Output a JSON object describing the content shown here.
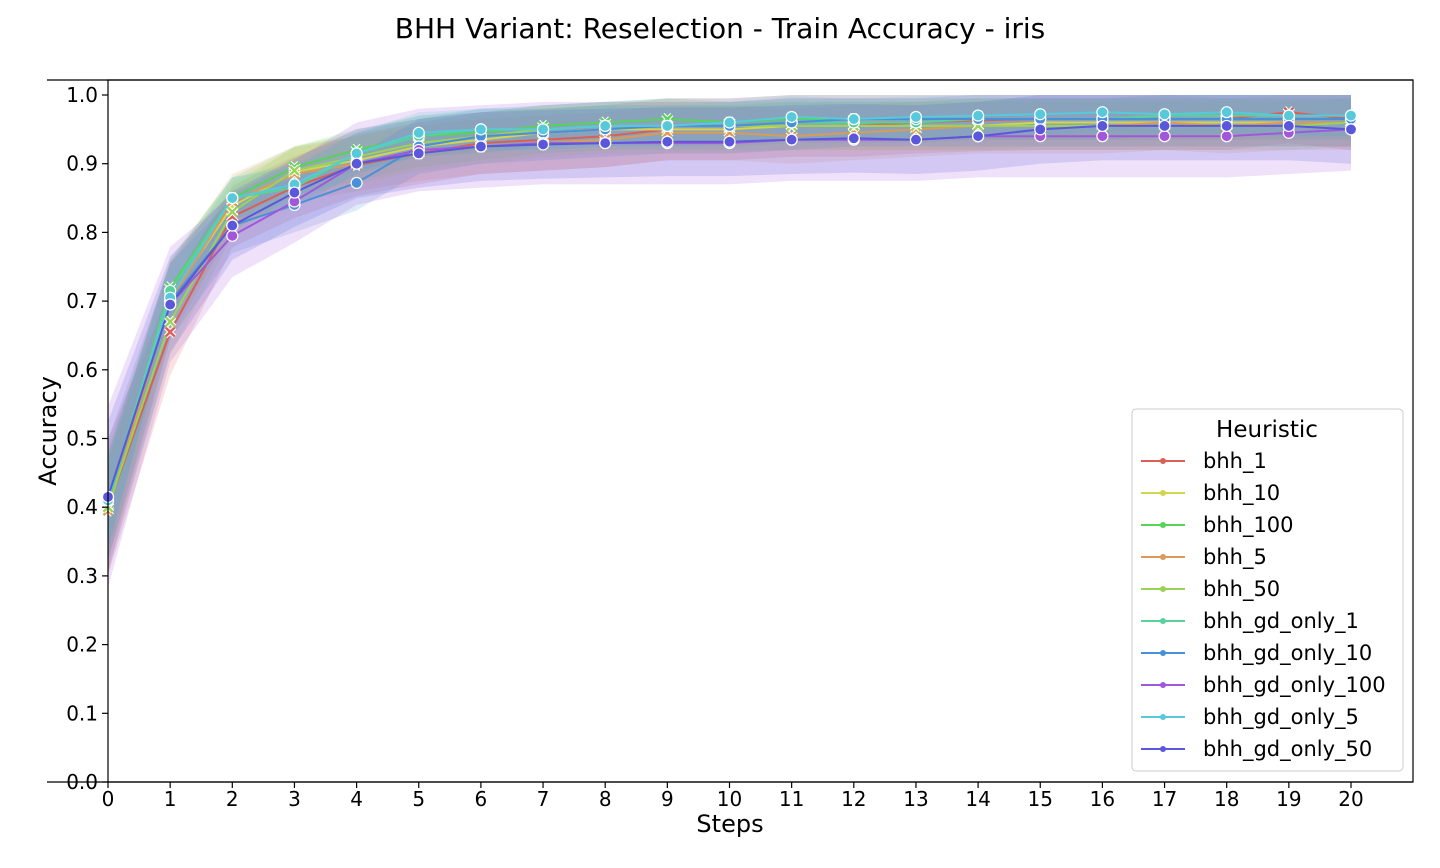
{
  "chart_data": {
    "type": "line",
    "title": "BHH Variant: Reselection - Train Accuracy - iris",
    "xlabel": "Steps",
    "ylabel": "Accuracy",
    "xlim": [
      0,
      21
    ],
    "ylim": [
      0.0,
      1.02
    ],
    "x": [
      0,
      1,
      2,
      3,
      4,
      5,
      6,
      7,
      8,
      9,
      10,
      11,
      12,
      13,
      14,
      15,
      16,
      17,
      18,
      19,
      20
    ],
    "x_ticks": [
      "0",
      "1",
      "2",
      "3",
      "4",
      "5",
      "6",
      "7",
      "8",
      "9",
      "10",
      "11",
      "12",
      "13",
      "14",
      "15",
      "16",
      "17",
      "18",
      "19",
      "20"
    ],
    "y_ticks": [
      "0.0",
      "0.1",
      "0.2",
      "0.3",
      "0.4",
      "0.5",
      "0.6",
      "0.7",
      "0.8",
      "0.9",
      "1.0"
    ],
    "grid": false,
    "legend": {
      "title": "Heuristic",
      "placement": "lower-right"
    },
    "series": [
      {
        "name": "bhh_1",
        "color": "#db5f57",
        "marker": "x",
        "values": [
          0.4,
          0.655,
          0.823,
          0.866,
          0.898,
          0.915,
          0.93,
          0.935,
          0.94,
          0.95,
          0.95,
          0.955,
          0.955,
          0.96,
          0.963,
          0.965,
          0.965,
          0.965,
          0.965,
          0.975,
          0.965
        ],
        "band": 0.045
      },
      {
        "name": "bhh_10",
        "color": "#d3d54f",
        "marker": "x",
        "values": [
          0.4,
          0.705,
          0.838,
          0.888,
          0.905,
          0.925,
          0.935,
          0.945,
          0.95,
          0.95,
          0.95,
          0.955,
          0.955,
          0.955,
          0.955,
          0.96,
          0.96,
          0.96,
          0.96,
          0.96,
          0.96
        ],
        "band": 0.035
      },
      {
        "name": "bhh_100",
        "color": "#57d357",
        "marker": "x",
        "values": [
          0.4,
          0.72,
          0.85,
          0.895,
          0.92,
          0.94,
          0.945,
          0.955,
          0.96,
          0.965,
          0.96,
          0.965,
          0.965,
          0.965,
          0.965,
          0.965,
          0.965,
          0.965,
          0.965,
          0.965,
          0.965
        ],
        "band": 0.03
      },
      {
        "name": "bhh_5",
        "color": "#db9a57",
        "marker": "x",
        "values": [
          0.395,
          0.7,
          0.845,
          0.885,
          0.9,
          0.915,
          0.925,
          0.93,
          0.935,
          0.945,
          0.945,
          0.94,
          0.945,
          0.95,
          0.955,
          0.955,
          0.955,
          0.96,
          0.955,
          0.96,
          0.96
        ],
        "band": 0.04
      },
      {
        "name": "bhh_50",
        "color": "#9ad357",
        "marker": "x",
        "values": [
          0.4,
          0.67,
          0.83,
          0.89,
          0.91,
          0.93,
          0.94,
          0.95,
          0.955,
          0.955,
          0.955,
          0.955,
          0.955,
          0.955,
          0.955,
          0.955,
          0.955,
          0.955,
          0.955,
          0.955,
          0.96
        ],
        "band": 0.035
      },
      {
        "name": "bhh_gd_only_1",
        "color": "#57d39a",
        "marker": "o",
        "values": [
          0.41,
          0.715,
          0.85,
          0.865,
          0.915,
          0.94,
          0.95,
          0.95,
          0.955,
          0.955,
          0.955,
          0.96,
          0.96,
          0.96,
          0.965,
          0.965,
          0.965,
          0.97,
          0.97,
          0.97,
          0.97
        ],
        "band": 0.03
      },
      {
        "name": "bhh_gd_only_10",
        "color": "#4a90d9",
        "marker": "o",
        "values": [
          0.41,
          0.7,
          0.81,
          0.84,
          0.872,
          0.925,
          0.94,
          0.945,
          0.95,
          0.955,
          0.955,
          0.96,
          0.965,
          0.965,
          0.965,
          0.965,
          0.965,
          0.965,
          0.965,
          0.965,
          0.965
        ],
        "band": 0.04
      },
      {
        "name": "bhh_gd_only_100",
        "color": "#a257db",
        "marker": "o",
        "values": [
          0.415,
          0.695,
          0.795,
          0.845,
          0.9,
          0.92,
          0.925,
          0.93,
          0.93,
          0.93,
          0.93,
          0.935,
          0.935,
          0.935,
          0.94,
          0.94,
          0.94,
          0.94,
          0.94,
          0.945,
          0.95
        ],
        "band": 0.06
      },
      {
        "name": "bhh_gd_only_5",
        "color": "#57c9db",
        "marker": "o",
        "values": [
          0.41,
          0.705,
          0.85,
          0.87,
          0.915,
          0.945,
          0.95,
          0.95,
          0.955,
          0.955,
          0.96,
          0.968,
          0.965,
          0.968,
          0.97,
          0.972,
          0.975,
          0.972,
          0.975,
          0.97,
          0.97
        ],
        "band": 0.03
      },
      {
        "name": "bhh_gd_only_50",
        "color": "#5b57db",
        "marker": "o",
        "values": [
          0.415,
          0.695,
          0.81,
          0.858,
          0.9,
          0.915,
          0.925,
          0.928,
          0.93,
          0.932,
          0.932,
          0.935,
          0.937,
          0.935,
          0.94,
          0.95,
          0.955,
          0.955,
          0.955,
          0.955,
          0.95
        ],
        "band": 0.05
      }
    ]
  }
}
